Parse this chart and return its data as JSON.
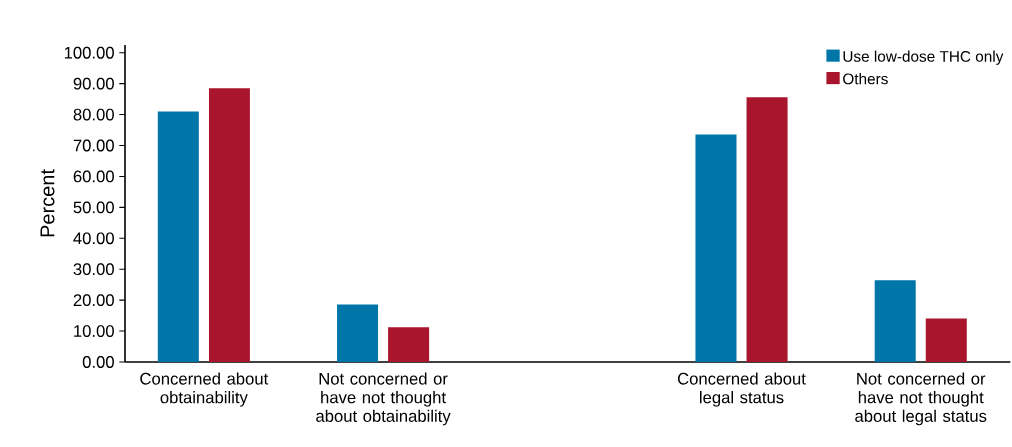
{
  "chart_data": {
    "type": "bar",
    "ylabel": "Percent",
    "categories": [
      "Concerned about obtainability",
      "Not concerned or have not thought about obtainability",
      null,
      "Concerned about legal status",
      "Not concerned or have not thought about legal status"
    ],
    "series": [
      {
        "name": "Use low-dose THC only",
        "color": "#0075a8",
        "values": [
          81.0,
          18.6,
          null,
          73.6,
          26.4
        ]
      },
      {
        "name": "Others",
        "color": "#a8152d",
        "values": [
          88.5,
          11.2,
          null,
          85.6,
          14.1
        ]
      }
    ],
    "ylim": [
      0,
      102.5
    ],
    "yticks": [
      {
        "value": 0,
        "label": "0.00"
      },
      {
        "value": 10,
        "label": "10.00"
      },
      {
        "value": 20,
        "label": "20.00"
      },
      {
        "value": 30,
        "label": "30.00"
      },
      {
        "value": 40,
        "label": "40.00"
      },
      {
        "value": 50,
        "label": "50.00"
      },
      {
        "value": 60,
        "label": "60.00"
      },
      {
        "value": 70,
        "label": "70.00"
      },
      {
        "value": 80,
        "label": "80.00"
      },
      {
        "value": 90,
        "label": "90.00"
      },
      {
        "value": 100,
        "label": "100.00"
      }
    ],
    "legend": "top right"
  }
}
